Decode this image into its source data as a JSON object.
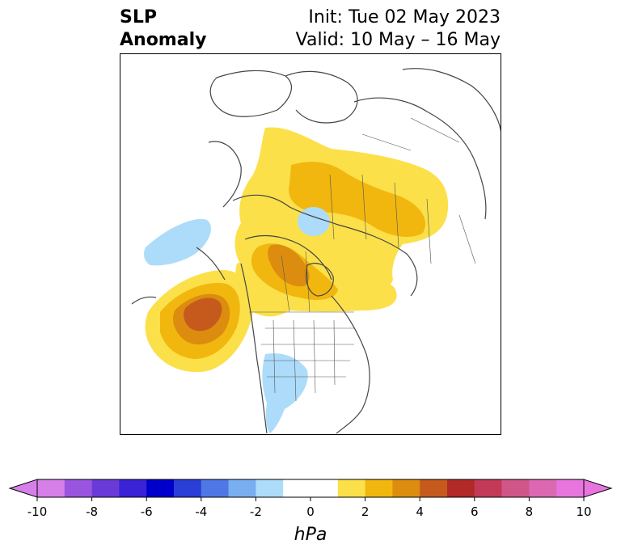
{
  "title": {
    "variable_line1": "SLP",
    "variable_line2": "Anomaly",
    "init": "Init: Tue 02 May 2023",
    "valid": "Valid: 10 May – 16 May"
  },
  "map": {
    "projection": "polar stereographic, North America / Arctic",
    "features": [
      "coastlines",
      "country borders",
      "state/province borders"
    ],
    "anomaly_regions": [
      {
        "name": "gulf-of-alaska-high",
        "sign": "positive",
        "peak_hpa": 5
      },
      {
        "name": "hudson-bay-high",
        "sign": "positive",
        "peak_hpa": 4
      },
      {
        "name": "eurasian-arctic-high",
        "sign": "positive",
        "peak_hpa": 2
      },
      {
        "name": "north-pacific-low",
        "sign": "negative",
        "peak_hpa": -1
      },
      {
        "name": "arctic-ocean-low",
        "sign": "negative",
        "peak_hpa": -1
      },
      {
        "name": "central-us-low",
        "sign": "negative",
        "peak_hpa": -1
      }
    ]
  },
  "colorbar": {
    "unit_label": "hPa",
    "tick_labels": [
      "-10",
      "-8",
      "-6",
      "-4",
      "-2",
      "0",
      "2",
      "4",
      "6",
      "8",
      "10"
    ],
    "colors": [
      "#d67fe8",
      "#9a55e0",
      "#6a3ad8",
      "#3a22d6",
      "#0000cc",
      "#2a3ed8",
      "#4f78e6",
      "#78aff0",
      "#acdcfa",
      "#ffffff",
      "#ffffff",
      "#fbe04a",
      "#f1b70e",
      "#dc8d10",
      "#c65a1c",
      "#b22a28",
      "#c23a58",
      "#d0568a",
      "#dc68b2",
      "#e875de"
    ],
    "min_color": "#d67fe8",
    "max_color": "#e875de"
  }
}
